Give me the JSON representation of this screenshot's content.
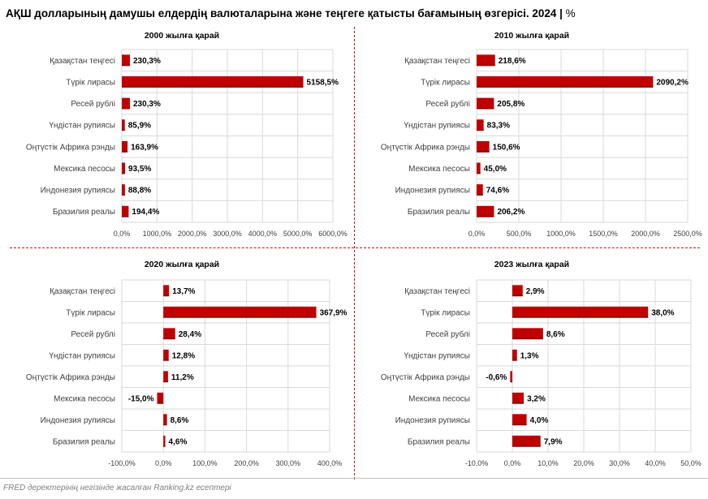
{
  "title": "АҚШ долларының дамушы елдердің валюталарына және теңгеге қатысты бағамының өзгерісі. 2024",
  "unit": "%",
  "footer": "FRED деректерінің негізінде жасалған Ranking.kz есептері",
  "colors": {
    "bar": "#c00000",
    "bar_dark": "#8b0000",
    "grid": "#d9d9d9",
    "divider": "#c0121a"
  },
  "chart_data": [
    {
      "type": "bar",
      "title": "2000 жылға қарай",
      "categories": [
        "Қазақстан теңгесі",
        "Түрік лирасы",
        "Ресей рублі",
        "Үндістан рупиясы",
        "Оңтүстік Африка рэнды",
        "Мексика песосы",
        "Индонезия рупиясы",
        "Бразилия реалы"
      ],
      "values": [
        230.3,
        5158.5,
        230.3,
        85.9,
        163.9,
        93.5,
        88.8,
        194.4
      ],
      "labels": [
        "230,3%",
        "5158,5%",
        "230,3%",
        "85,9%",
        "163,9%",
        "93,5%",
        "88,8%",
        "194,4%"
      ],
      "xlim": [
        0,
        6000
      ],
      "ticks": [
        0,
        1000,
        2000,
        3000,
        4000,
        5000,
        6000
      ],
      "tick_labels": [
        "0,0%",
        "1000,0%",
        "2000,0%",
        "3000,0%",
        "4000,0%",
        "5000,0%",
        "6000,0%"
      ]
    },
    {
      "type": "bar",
      "title": "2010 жылға қарай",
      "categories": [
        "Қазақстан теңгесі",
        "Түрік лирасы",
        "Ресей рублі",
        "Үндістан рупиясы",
        "Оңтүстік Африка рэнды",
        "Мексика песосы",
        "Индонезия рупиясы",
        "Бразилия реалы"
      ],
      "values": [
        218.6,
        2090.2,
        205.8,
        83.3,
        150.6,
        45.0,
        74.6,
        206.2
      ],
      "labels": [
        "218,6%",
        "2090,2%",
        "205,8%",
        "83,3%",
        "150,6%",
        "45,0%",
        "74,6%",
        "206,2%"
      ],
      "xlim": [
        0,
        2500
      ],
      "ticks": [
        0,
        500,
        1000,
        1500,
        2000,
        2500
      ],
      "tick_labels": [
        "0,0%",
        "500,0%",
        "1000,0%",
        "1500,0%",
        "2000,0%",
        "2500,0%"
      ]
    },
    {
      "type": "bar",
      "title": "2020 жылға қарай",
      "categories": [
        "Қазақстан теңгесі",
        "Түрік лирасы",
        "Ресей рублі",
        "Үндістан рупиясы",
        "Оңтүстік Африка рэнды",
        "Мексика песосы",
        "Индонезия рупиясы",
        "Бразилия реалы"
      ],
      "values": [
        13.7,
        367.9,
        28.4,
        12.8,
        11.2,
        -15.0,
        8.6,
        4.6
      ],
      "labels": [
        "13,7%",
        "367,9%",
        "28,4%",
        "12,8%",
        "11,2%",
        "-15,0%",
        "8,6%",
        "4,6%"
      ],
      "xlim": [
        -100,
        400
      ],
      "ticks": [
        -100,
        0,
        100,
        200,
        300,
        400
      ],
      "tick_labels": [
        "-100,0%",
        "0,0%",
        "100,0%",
        "200,0%",
        "300,0%",
        "400,0%"
      ]
    },
    {
      "type": "bar",
      "title": "2023 жылға қарай",
      "categories": [
        "Қазақстан теңгесі",
        "Түрік лирасы",
        "Ресей рублі",
        "Үндістан рупиясы",
        "Оңтүстік Африка рэнды",
        "Мексика песосы",
        "Индонезия рупиясы",
        "Бразилия реалы"
      ],
      "values": [
        2.9,
        38.0,
        8.6,
        1.3,
        -0.6,
        3.2,
        4.0,
        7.9
      ],
      "labels": [
        "2,9%",
        "38,0%",
        "8,6%",
        "1,3%",
        "-0,6%",
        "3,2%",
        "4,0%",
        "7,9%"
      ],
      "xlim": [
        -10,
        50
      ],
      "ticks": [
        -10,
        0,
        10,
        20,
        30,
        40,
        50
      ],
      "tick_labels": [
        "-10,0%",
        "0,0%",
        "10,0%",
        "20,0%",
        "30,0%",
        "40,0%",
        "50,0%"
      ]
    }
  ]
}
